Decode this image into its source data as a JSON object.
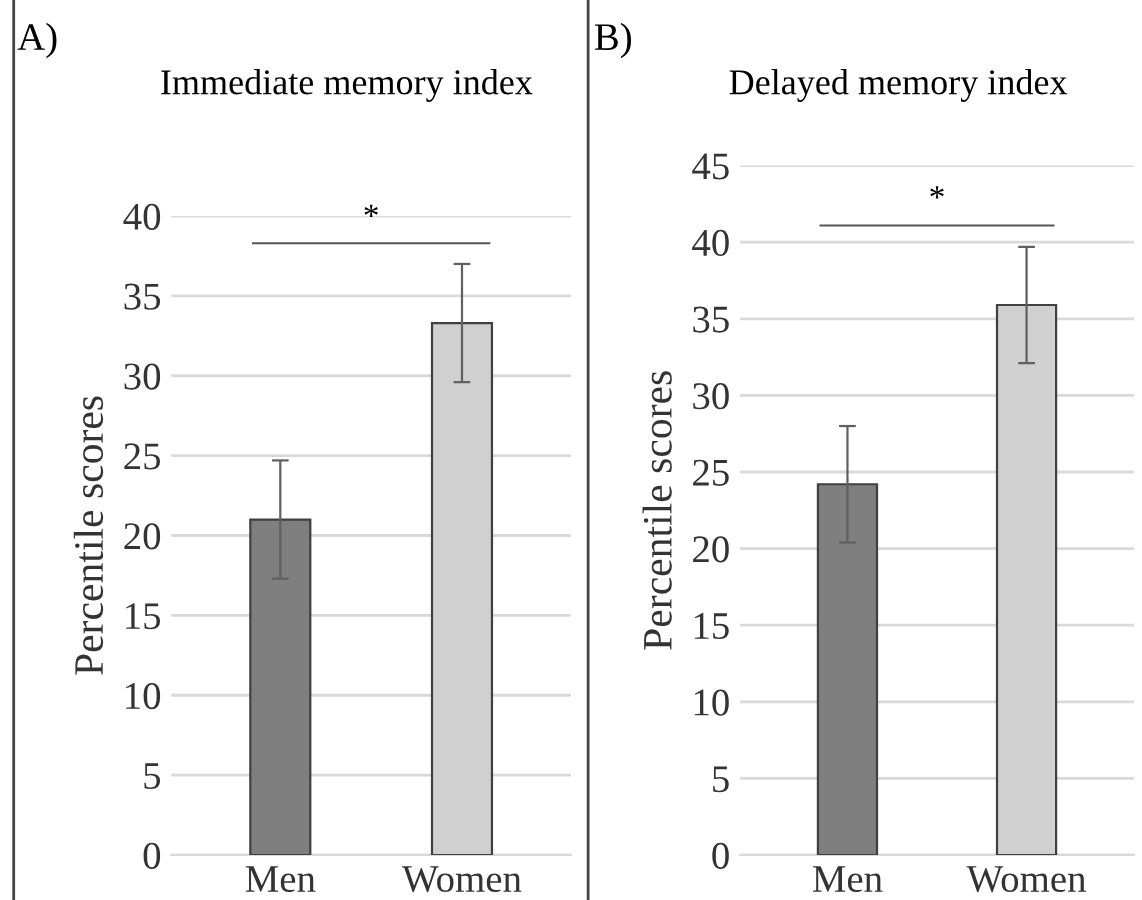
{
  "chart_data": [
    {
      "type": "bar",
      "title": "Immediate memory index",
      "ylabel": "Percentile scores",
      "annotations": [
        "A)",
        "*"
      ],
      "categories": [
        "Men",
        "Women"
      ],
      "values": [
        21.0,
        33.3
      ],
      "colors": [
        "#7f7f7f",
        "#d0d0d0"
      ],
      "errors": [
        [
          17.3,
          24.7
        ],
        [
          29.6,
          37.0
        ]
      ],
      "ylim": [
        0,
        40
      ],
      "yticks": [
        0,
        5,
        10,
        15,
        20,
        25,
        30,
        35,
        40
      ],
      "grid": "y"
    },
    {
      "type": "bar",
      "title": "Delayed memory index",
      "ylabel": "Percentile scores",
      "annotations": [
        "B)",
        "*"
      ],
      "categories": [
        "Men",
        "Women"
      ],
      "values": [
        24.2,
        35.9
      ],
      "colors": [
        "#7f7f7f",
        "#d0d0d0"
      ],
      "errors": [
        [
          20.4,
          28.0
        ],
        [
          32.1,
          39.7
        ]
      ],
      "ylim": [
        0,
        45
      ],
      "yticks": [
        0,
        5,
        10,
        15,
        20,
        25,
        30,
        35,
        40,
        45
      ],
      "grid": "y"
    }
  ]
}
